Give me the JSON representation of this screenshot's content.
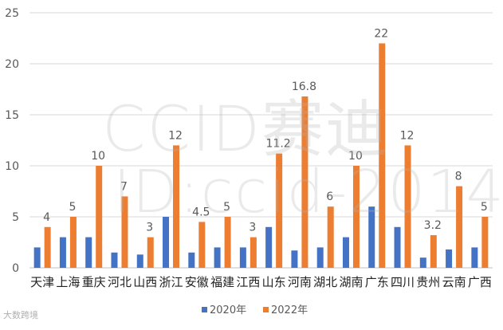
{
  "watermark": {
    "line1": "CCID赛迪",
    "line2": "ID:ccid-2014",
    "corner_text": "大数跨境"
  },
  "colors": {
    "series_2020": "#4472c4",
    "series_2022": "#ed7d31",
    "grid": "#d9d9d9",
    "axis_text": "#595959"
  },
  "chart_data": {
    "type": "bar",
    "categories": [
      "天津",
      "上海",
      "重庆",
      "河北",
      "山西",
      "浙江",
      "安徽",
      "福建",
      "江西",
      "山东",
      "河南",
      "湖北",
      "湖南",
      "广东",
      "四川",
      "贵州",
      "云南",
      "广西"
    ],
    "series": [
      {
        "name": "2020年",
        "values": [
          2,
          3,
          3,
          1.5,
          1.3,
          5,
          1.5,
          2,
          2,
          4,
          1.7,
          2,
          3,
          6,
          4,
          1,
          1.8,
          2
        ]
      },
      {
        "name": "2022年",
        "values": [
          4,
          5,
          10,
          7,
          3,
          12,
          4.5,
          5,
          3,
          11.2,
          16.8,
          6,
          10,
          22,
          12,
          3.2,
          8,
          5
        ]
      }
    ],
    "data_labels_series": "2022年",
    "ylim": [
      0,
      25
    ],
    "yticks": [
      0,
      5,
      10,
      15,
      20,
      25
    ],
    "legend_position": "bottom",
    "grid": true
  }
}
